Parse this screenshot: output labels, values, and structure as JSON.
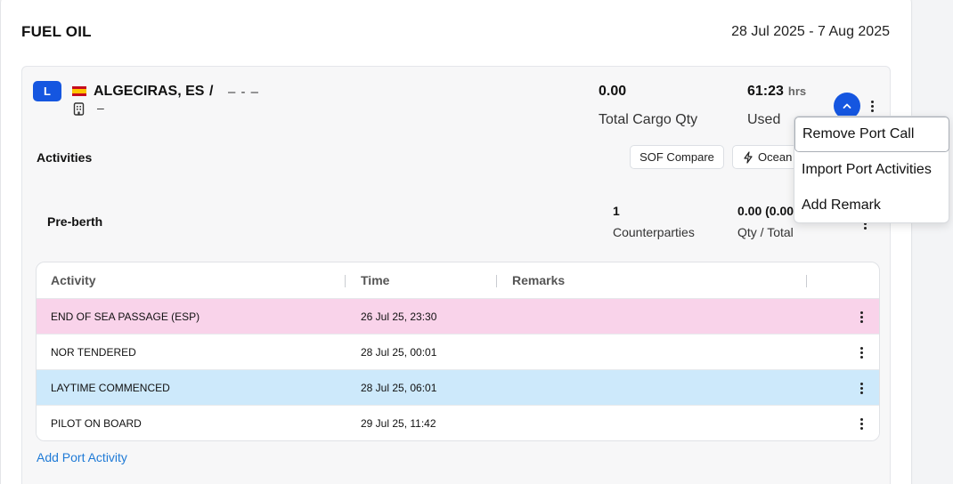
{
  "section": {
    "title": "FUEL OIL",
    "date_range": "28 Jul 2025 - 7 Aug 2025"
  },
  "port_call": {
    "badge": "L",
    "flag_icon": "spain-flag-icon",
    "port_name": "ALGECIRAS, ES",
    "separator": "/",
    "dashes": "– - –",
    "sub_dash": "–",
    "total_cargo_qty": "0.00",
    "total_cargo_qty_label": "Total Cargo Qty",
    "used_value": "61:23",
    "used_unit": "hrs",
    "used_label": "Used"
  },
  "activities": {
    "title": "Activities",
    "sof_compare_label": "SOF Compare",
    "ocean_label": "Ocean"
  },
  "preberth": {
    "title": "Pre-berth",
    "counterparties_value": "1",
    "counterparties_label": "Counterparties",
    "qty_value": "0.00 (0.00",
    "qty_label": "Qty / Total"
  },
  "table": {
    "headers": {
      "activity": "Activity",
      "time": "Time",
      "remarks": "Remarks"
    },
    "rows": [
      {
        "activity": "END OF SEA PASSAGE (ESP)",
        "time": "26 Jul 25, 23:30",
        "remarks": "",
        "bg": "#f9d3ea"
      },
      {
        "activity": "NOR TENDERED",
        "time": "28 Jul 25, 00:01",
        "remarks": "",
        "bg": "#ffffff"
      },
      {
        "activity": "LAYTIME COMMENCED",
        "time": "28 Jul 25, 06:01",
        "remarks": "",
        "bg": "#cde9fb"
      },
      {
        "activity": "PILOT ON BOARD",
        "time": "29 Jul 25, 11:42",
        "remarks": "",
        "bg": "#ffffff"
      }
    ]
  },
  "add_activity_label": "Add Port Activity",
  "menu": {
    "items": [
      "Remove Port Call",
      "Import Port Activities",
      "Add Remark"
    ]
  }
}
